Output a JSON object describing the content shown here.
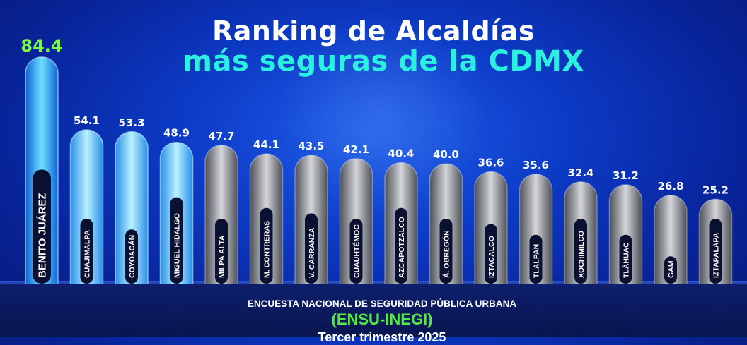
{
  "title_line1": "Ranking de Alcaldías",
  "title_line2": "más seguras de la CDMX",
  "source_line1": "ENCUESTA NACIONAL DE SEGURIDAD PÚBLICA URBANA",
  "source_line2": "(ENSU-INEGI)",
  "source_line3": "Tercer trimestre 2025",
  "colors": {
    "highlight_value": "#7CFC3C",
    "title_accent": "#2bf0e0",
    "source_accent": "#56e84a",
    "bar_blue": "#3fbdf8",
    "bar_gray": "#8a8f99"
  },
  "chart_data": {
    "type": "bar",
    "categories": [
      "BENITO JUÁREZ",
      "CUAJIMALPA",
      "COYOACÁN",
      "MIGUEL HIDALGO",
      "MILPA ALTA",
      "M. CONTRERAS",
      "V. CARRANZA",
      "CUAUHTÉMOC",
      "AZCAPOTZALCO",
      "Á. OBREGÓN",
      "IZTACALCO",
      "TLALPAN",
      "XOCHIMILCO",
      "TLÁHUAC",
      "GAM",
      "IZTAPALAPA"
    ],
    "values": [
      84.4,
      54.1,
      53.3,
      48.9,
      47.7,
      44.1,
      43.5,
      42.1,
      40.4,
      40.0,
      36.6,
      35.6,
      32.4,
      31.2,
      26.8,
      25.2
    ],
    "value_labels": [
      "84.4",
      "54.1",
      "53.3",
      "48.9",
      "47.7",
      "44.1",
      "43.5",
      "42.1",
      "40.4",
      "40.0",
      "36.6",
      "35.6",
      "32.4",
      "31.2",
      "26.8",
      "25.2"
    ],
    "highlight": [
      "top",
      "blue",
      "blue",
      "blue",
      "gray",
      "gray",
      "gray",
      "gray",
      "gray",
      "gray",
      "gray",
      "gray",
      "gray",
      "gray",
      "gray",
      "gray"
    ],
    "title": "Ranking de Alcaldías más seguras de la CDMX",
    "xlabel": "",
    "ylabel": ""
  }
}
